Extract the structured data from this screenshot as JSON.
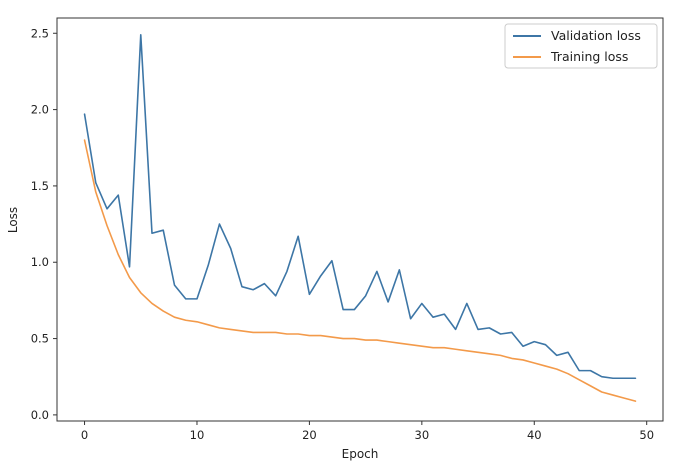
{
  "chart_data": {
    "type": "line",
    "xlabel": "Epoch",
    "ylabel": "Loss",
    "xlim": [
      -2.45,
      51.45
    ],
    "ylim": [
      -0.04,
      2.6
    ],
    "xticks": [
      0,
      10,
      20,
      30,
      40,
      50
    ],
    "yticks": [
      0.0,
      0.5,
      1.0,
      1.5,
      2.0,
      2.5
    ],
    "xtick_labels": [
      "0",
      "10",
      "20",
      "30",
      "40",
      "50"
    ],
    "ytick_labels": [
      "0.0",
      "0.5",
      "1.0",
      "1.5",
      "2.0",
      "2.5"
    ],
    "grid": false,
    "legend_position": "top-right",
    "series": [
      {
        "name": "Validation loss",
        "color": "#3d76a6",
        "x": [
          0,
          1,
          2,
          3,
          4,
          5,
          6,
          7,
          8,
          9,
          10,
          11,
          12,
          13,
          14,
          15,
          16,
          17,
          18,
          19,
          20,
          21,
          22,
          23,
          24,
          25,
          26,
          27,
          28,
          29,
          30,
          31,
          32,
          33,
          34,
          35,
          36,
          37,
          38,
          39,
          40,
          41,
          42,
          43,
          44,
          45,
          46,
          47,
          48,
          49
        ],
        "values": [
          1.97,
          1.52,
          1.35,
          1.44,
          0.97,
          2.49,
          1.19,
          1.21,
          0.85,
          0.76,
          0.76,
          0.98,
          1.25,
          1.09,
          0.84,
          0.82,
          0.86,
          0.78,
          0.94,
          1.17,
          0.79,
          0.91,
          1.01,
          0.69,
          0.69,
          0.78,
          0.94,
          0.74,
          0.95,
          0.63,
          0.73,
          0.64,
          0.66,
          0.56,
          0.73,
          0.56,
          0.57,
          0.53,
          0.54,
          0.45,
          0.48,
          0.46,
          0.39,
          0.41,
          0.29,
          0.29,
          0.25,
          0.24,
          0.24,
          0.24
        ]
      },
      {
        "name": "Training loss",
        "color": "#f39a4a",
        "x": [
          0,
          1,
          2,
          3,
          4,
          5,
          6,
          7,
          8,
          9,
          10,
          11,
          12,
          13,
          14,
          15,
          16,
          17,
          18,
          19,
          20,
          21,
          22,
          23,
          24,
          25,
          26,
          27,
          28,
          29,
          30,
          31,
          32,
          33,
          34,
          35,
          36,
          37,
          38,
          39,
          40,
          41,
          42,
          43,
          44,
          45,
          46,
          47,
          48,
          49
        ],
        "values": [
          1.8,
          1.46,
          1.24,
          1.05,
          0.9,
          0.8,
          0.73,
          0.68,
          0.64,
          0.62,
          0.61,
          0.59,
          0.57,
          0.56,
          0.55,
          0.54,
          0.54,
          0.54,
          0.53,
          0.53,
          0.52,
          0.52,
          0.51,
          0.5,
          0.5,
          0.49,
          0.49,
          0.48,
          0.47,
          0.46,
          0.45,
          0.44,
          0.44,
          0.43,
          0.42,
          0.41,
          0.4,
          0.39,
          0.37,
          0.36,
          0.34,
          0.32,
          0.3,
          0.27,
          0.23,
          0.19,
          0.15,
          0.13,
          0.11,
          0.09
        ]
      }
    ]
  }
}
